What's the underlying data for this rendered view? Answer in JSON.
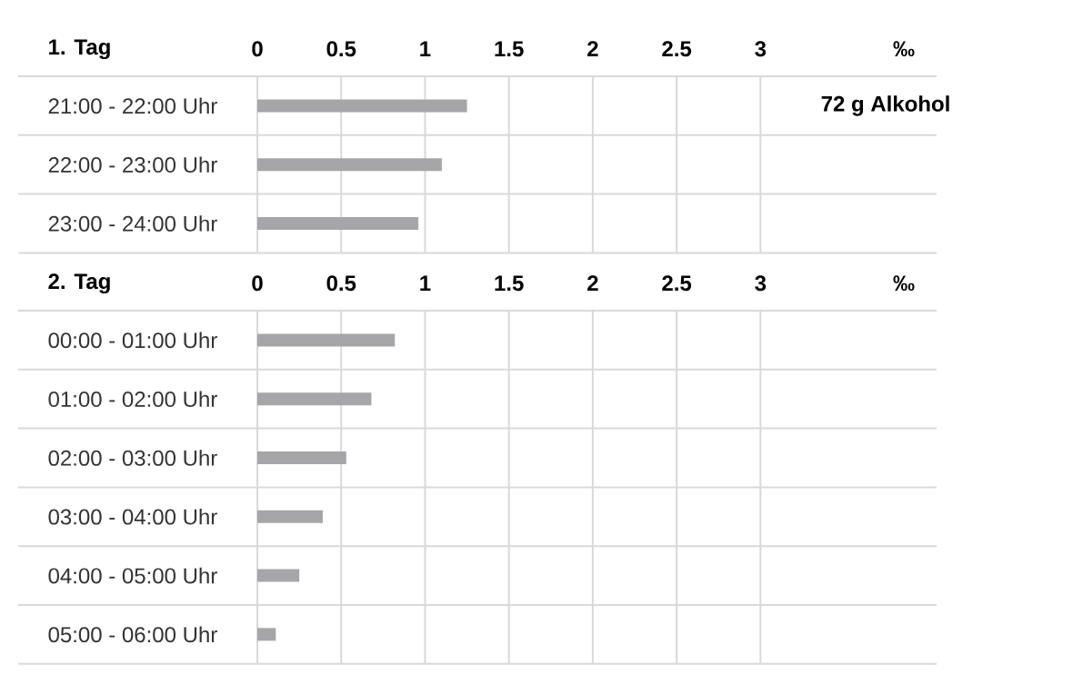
{
  "chart_data": [
    {
      "type": "bar",
      "orientation": "horizontal",
      "title": "1. Tag",
      "xlabel": "‰",
      "categories": [
        "21:00 - 22:00 Uhr",
        "22:00 - 23:00 Uhr",
        "23:00 - 24:00 Uhr"
      ],
      "values": [
        1.25,
        1.1,
        0.96
      ],
      "color": "#a6a6a8",
      "xlim": [
        0,
        4.05
      ],
      "xticks": [
        0,
        0.5,
        1,
        1.5,
        2,
        2.5,
        3
      ],
      "grid": "x",
      "annotations": [
        "72 g Alkohol"
      ]
    },
    {
      "type": "bar",
      "orientation": "horizontal",
      "title": "2. Tag",
      "xlabel": "‰",
      "categories": [
        "00:00 - 01:00 Uhr",
        "01:00 - 02:00 Uhr",
        "02:00 - 03:00 Uhr",
        "03:00 - 04:00 Uhr",
        "04:00 - 05:00 Uhr",
        "05:00 - 06:00 Uhr"
      ],
      "values": [
        0.82,
        0.68,
        0.53,
        0.39,
        0.25,
        0.11
      ],
      "color": "#a6a6a8",
      "xlim": [
        0,
        4.05
      ],
      "xticks": [
        0,
        0.5,
        1,
        1.5,
        2,
        2.5,
        3
      ],
      "grid": "x"
    }
  ]
}
